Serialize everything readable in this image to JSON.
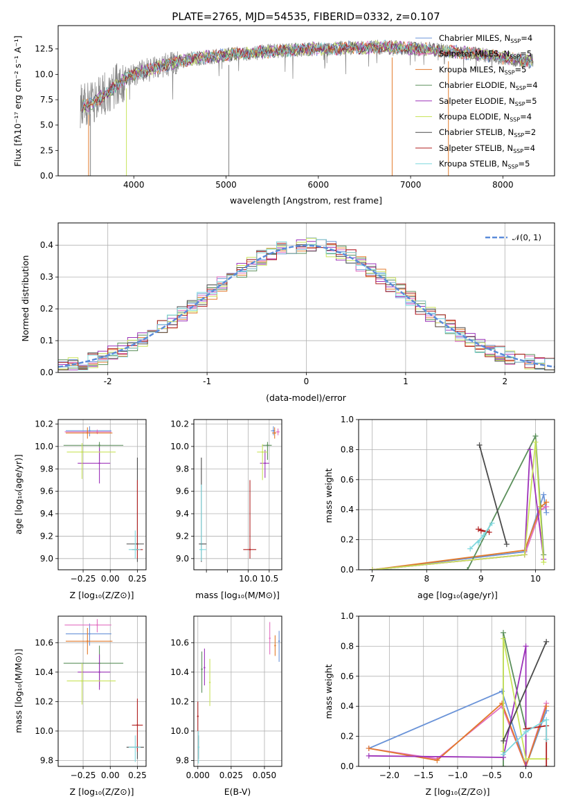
{
  "figure": {
    "title": "PLATE=2765, MJD=54535, FIBERID=0332, z=0.107"
  },
  "models": [
    {
      "name": "Chabrier MILES",
      "nssp": "4",
      "color": "#6a93d8"
    },
    {
      "name": "Salpeter MILES",
      "nssp": "5",
      "color": "#e26fc0"
    },
    {
      "name": "Kroupa MILES",
      "nssp": "5",
      "color": "#e27a2b"
    },
    {
      "name": "Chabrier ELODIE",
      "nssp": "4",
      "color": "#5a8f5a"
    },
    {
      "name": "Salpeter ELODIE",
      "nssp": "5",
      "color": "#9b30b8"
    },
    {
      "name": "Kroupa ELODIE",
      "nssp": "4",
      "color": "#c8e35a"
    },
    {
      "name": "Chabrier STELIB",
      "nssp": "2",
      "color": "#4a4a4a"
    },
    {
      "name": "Salpeter STELIB",
      "nssp": "4",
      "color": "#b01f1f"
    },
    {
      "name": "Kroupa STELIB",
      "nssp": "5",
      "color": "#7fd8de"
    }
  ],
  "chart_data": [
    {
      "id": "spectrum",
      "type": "line",
      "title": "PLATE=2765, MJD=54535, FIBERID=0332, z=0.107",
      "xlabel": "wavelength [Angstrom, rest frame]",
      "ylabel": "Flux [fλ10⁻¹⁷ erg cm⁻² s⁻¹ A⁻¹]",
      "xlim": [
        3180,
        8560
      ],
      "ylim": [
        0,
        14.8
      ],
      "xticks": [
        4000,
        5000,
        6000,
        7000,
        8000
      ],
      "yticks": [
        0.0,
        2.5,
        5.0,
        7.5,
        10.0,
        12.5
      ],
      "legend": "upper right",
      "data_color": "#808080",
      "data_envelope": {
        "x": [
          3450,
          3550,
          3650,
          3750,
          3850,
          3950,
          4100,
          4300,
          4500,
          4700,
          4900,
          5100,
          5300,
          5500,
          5700,
          5900,
          6100,
          6300,
          6500,
          6700,
          6900,
          7100,
          7300,
          7500,
          7700,
          7900,
          8100,
          8300
        ],
        "y": [
          6.9,
          7.1,
          7.8,
          8.4,
          9.2,
          9.8,
          10.3,
          10.8,
          11.3,
          11.6,
          11.8,
          12.0,
          12.1,
          12.3,
          12.4,
          12.5,
          12.5,
          12.6,
          12.6,
          12.7,
          12.6,
          12.5,
          12.4,
          12.2,
          12.0,
          11.8,
          11.5,
          11.3
        ]
      },
      "drops": [
        3510,
        3530,
        3920,
        5030,
        6800,
        7410
      ]
    },
    {
      "id": "residuals",
      "type": "bar",
      "xlabel": "(data-model)/error",
      "ylabel": "Normed distribution",
      "xlim": [
        -2.5,
        2.5
      ],
      "ylim": [
        0,
        0.47
      ],
      "xticks": [
        -2,
        -1,
        0,
        1,
        2
      ],
      "yticks": [
        0.0,
        0.1,
        0.2,
        0.3,
        0.4
      ],
      "reference": {
        "name": "𝒩(0, 1)",
        "mu": 0,
        "sigma": 1,
        "color": "#5b8bd9"
      },
      "bin_width": 0.1,
      "legend": "upper right"
    },
    {
      "id": "age-vs-Z",
      "type": "scatter",
      "xlabel": "Z [log₁₀(Z/Z⊙)]",
      "ylabel": "age  [log₁₀(age/yr)]",
      "xlim": [
        -0.48,
        0.33
      ],
      "ylim": [
        8.9,
        10.24
      ],
      "xticks": [
        -0.25,
        0.0,
        0.25
      ],
      "xtick_labels": [
        "−0.25",
        "0.00",
        "0.25"
      ],
      "yticks": [
        9.0,
        9.2,
        9.4,
        9.6,
        9.8,
        10.0,
        10.2
      ],
      "points": [
        {
          "model": 0,
          "x": -0.19,
          "xerr": [
            0.22,
            0.2
          ],
          "y": 10.14,
          "yerr": [
            0.05,
            0.04
          ]
        },
        {
          "model": 1,
          "x": -0.12,
          "xerr": [
            0.3,
            0.13
          ],
          "y": 10.13,
          "yerr": [
            0.02,
            0.02
          ]
        },
        {
          "model": 2,
          "x": -0.21,
          "xerr": [
            0.2,
            0.23
          ],
          "y": 10.12,
          "yerr": [
            0.05,
            0.05
          ]
        },
        {
          "model": 3,
          "x": -0.1,
          "xerr": [
            0.33,
            0.22
          ],
          "y": 10.01,
          "yerr": [
            0.14,
            0.03
          ]
        },
        {
          "model": 4,
          "x": -0.1,
          "xerr": [
            0.2,
            0.1
          ],
          "y": 9.85,
          "yerr": [
            0.18,
            0.14
          ]
        },
        {
          "model": 5,
          "x": -0.26,
          "xerr": [
            0.14,
            0.31
          ],
          "y": 9.95,
          "yerr": [
            0.24,
            0.08
          ]
        },
        {
          "model": 6,
          "x": 0.25,
          "xerr": [
            0.1,
            0.06
          ],
          "y": 9.13,
          "yerr": [
            0.16,
            0.77
          ]
        },
        {
          "model": 7,
          "x": 0.25,
          "xerr": [
            0.05,
            0.05
          ],
          "y": 9.08,
          "yerr": [
            0.08,
            0.62
          ]
        },
        {
          "model": 8,
          "x": 0.23,
          "xerr": [
            0.06,
            0.05
          ],
          "y": 9.08,
          "yerr": [
            0.08,
            0.17
          ]
        }
      ]
    },
    {
      "id": "age-vs-mass",
      "type": "scatter",
      "xlabel": "mass [log₁₀(M/M⊙)]",
      "xlim": [
        8.7,
        10.8
      ],
      "ylim": [
        8.9,
        10.24
      ],
      "xticks": [
        9.0,
        9.5,
        10.0,
        10.5
      ],
      "xtick_labels": [
        "",
        "",
        "10.0",
        "10.5"
      ],
      "yticks": [
        9.0,
        9.2,
        9.4,
        9.6,
        9.8,
        10.0,
        10.2
      ],
      "points": [
        {
          "model": 0,
          "x": 10.6,
          "xerr": [
            0.06,
            0.04
          ],
          "y": 10.14,
          "yerr": [
            0.04,
            0.04
          ]
        },
        {
          "model": 1,
          "x": 10.71,
          "xerr": [
            0.05,
            0.04
          ],
          "y": 10.13,
          "yerr": [
            0.03,
            0.03
          ]
        },
        {
          "model": 2,
          "x": 10.63,
          "xerr": [
            0.06,
            0.04
          ],
          "y": 10.12,
          "yerr": [
            0.05,
            0.05
          ]
        },
        {
          "model": 3,
          "x": 10.46,
          "xerr": [
            0.13,
            0.1
          ],
          "y": 10.01,
          "yerr": [
            0.13,
            0.03
          ]
        },
        {
          "model": 4,
          "x": 10.4,
          "xerr": [
            0.12,
            0.1
          ],
          "y": 9.85,
          "yerr": [
            0.13,
            0.12
          ]
        },
        {
          "model": 5,
          "x": 10.34,
          "xerr": [
            0.13,
            0.12
          ],
          "y": 9.95,
          "yerr": [
            0.25,
            0.07
          ]
        },
        {
          "model": 6,
          "x": 8.88,
          "xerr": [
            0.06,
            0.12
          ],
          "y": 9.13,
          "yerr": [
            0.16,
            0.77
          ]
        },
        {
          "model": 7,
          "x": 10.04,
          "xerr": [
            0.16,
            0.15
          ],
          "y": 9.08,
          "yerr": [
            0.08,
            0.62
          ]
        },
        {
          "model": 8,
          "x": 8.88,
          "xerr": [
            0.05,
            0.12
          ],
          "y": 9.08,
          "yerr": [
            0.1,
            0.58
          ]
        }
      ]
    },
    {
      "id": "weight-vs-age",
      "type": "line",
      "xlabel": "age  [log₁₀(age/yr)]",
      "ylabel": "mass weight",
      "xlim": [
        6.75,
        10.35
      ],
      "ylim": [
        0,
        1.0
      ],
      "xticks": [
        7,
        8,
        9,
        10
      ],
      "yticks": [
        0.0,
        0.2,
        0.4,
        0.6,
        0.8,
        1.0
      ],
      "series": [
        {
          "model": 0,
          "x": [
            7.0,
            9.8,
            10.15,
            10.2
          ],
          "y": [
            0.0,
            0.12,
            0.5,
            0.38
          ]
        },
        {
          "model": 1,
          "x": [
            7.0,
            9.8,
            10.1,
            10.2
          ],
          "y": [
            0.0,
            0.1,
            0.4,
            0.42
          ]
        },
        {
          "model": 2,
          "x": [
            7.0,
            9.8,
            10.1,
            10.2
          ],
          "y": [
            0.0,
            0.13,
            0.42,
            0.45
          ]
        },
        {
          "model": 3,
          "x": [
            7.0,
            8.75,
            10.0,
            10.15
          ],
          "y": [
            0.0,
            0.0,
            0.89,
            0.1
          ]
        },
        {
          "model": 4,
          "x": [
            7.0,
            9.8,
            9.9,
            10.15
          ],
          "y": [
            0.0,
            0.1,
            0.8,
            0.07
          ]
        },
        {
          "model": 5,
          "x": [
            7.0,
            9.8,
            10.0,
            10.15
          ],
          "y": [
            0.0,
            0.1,
            0.85,
            0.05
          ]
        },
        {
          "model": 6,
          "x": [
            8.97,
            9.47
          ],
          "y": [
            0.83,
            0.17
          ]
        },
        {
          "model": 7,
          "x": [
            8.95,
            9.15,
            9.0
          ],
          "y": [
            0.27,
            0.25,
            0.26
          ]
        },
        {
          "model": 8,
          "x": [
            8.8,
            9.05,
            9.2,
            8.95
          ],
          "y": [
            0.14,
            0.23,
            0.31,
            0.18
          ]
        }
      ]
    },
    {
      "id": "mass-vs-Z",
      "type": "scatter",
      "xlabel": "Z [log₁₀(Z/Z⊙)]",
      "ylabel": "mass [log₁₀(M/M⊙)]",
      "xlim": [
        -0.48,
        0.33
      ],
      "ylim": [
        9.76,
        10.78
      ],
      "xticks": [
        -0.25,
        0.0,
        0.25
      ],
      "xtick_labels": [
        "−0.25",
        "0.00",
        "0.25"
      ],
      "yticks": [
        9.8,
        10.0,
        10.2,
        10.4,
        10.6
      ],
      "points": [
        {
          "model": 0,
          "x": -0.19,
          "xerr": [
            0.22,
            0.2
          ],
          "y": 10.66,
          "yerr": [
            0.08,
            0.07
          ]
        },
        {
          "model": 1,
          "x": -0.12,
          "xerr": [
            0.3,
            0.13
          ],
          "y": 10.72,
          "yerr": [
            0.05,
            0.04
          ]
        },
        {
          "model": 2,
          "x": -0.21,
          "xerr": [
            0.2,
            0.23
          ],
          "y": 10.61,
          "yerr": [
            0.09,
            0.09
          ]
        },
        {
          "model": 3,
          "x": -0.1,
          "xerr": [
            0.33,
            0.22
          ],
          "y": 10.46,
          "yerr": [
            0.16,
            0.12
          ]
        },
        {
          "model": 4,
          "x": -0.1,
          "xerr": [
            0.2,
            0.1
          ],
          "y": 10.4,
          "yerr": [
            0.12,
            0.12
          ]
        },
        {
          "model": 5,
          "x": -0.26,
          "xerr": [
            0.14,
            0.31
          ],
          "y": 10.34,
          "yerr": [
            0.16,
            0.12
          ]
        },
        {
          "model": 6,
          "x": 0.25,
          "xerr": [
            0.1,
            0.06
          ],
          "y": 9.89,
          "yerr": [
            0.08,
            0.08
          ]
        },
        {
          "model": 7,
          "x": 0.25,
          "xerr": [
            0.05,
            0.05
          ],
          "y": 10.04,
          "yerr": [
            0.18,
            0.18
          ]
        },
        {
          "model": 8,
          "x": 0.23,
          "xerr": [
            0.06,
            0.05
          ],
          "y": 9.89,
          "yerr": [
            0.1,
            0.08
          ]
        }
      ]
    },
    {
      "id": "mass-vs-ebv",
      "type": "scatter",
      "xlabel": "E(B-V)",
      "xlim": [
        -0.003,
        0.063
      ],
      "ylim": [
        9.76,
        10.78
      ],
      "xticks": [
        0.0,
        0.025,
        0.05
      ],
      "xtick_labels": [
        "0.000",
        "0.025",
        "0.050"
      ],
      "yticks": [
        9.8,
        10.0,
        10.2,
        10.4,
        10.6
      ],
      "points": [
        {
          "model": 0,
          "x": 0.061,
          "y": 10.61,
          "yerr": [
            0.14,
            0.07
          ]
        },
        {
          "model": 1,
          "x": 0.054,
          "y": 10.63,
          "yerr": [
            0.11,
            0.11
          ]
        },
        {
          "model": 2,
          "x": 0.058,
          "y": 10.58,
          "yerr": [
            0.07,
            0.07
          ]
        },
        {
          "model": 3,
          "x": 0.003,
          "y": 10.42,
          "yerr": [
            0.16,
            0.12
          ]
        },
        {
          "model": 4,
          "x": 0.005,
          "y": 10.43,
          "yerr": [
            0.12,
            0.13
          ]
        },
        {
          "model": 5,
          "x": 0.009,
          "y": 10.33,
          "yerr": [
            0.16,
            0.16
          ]
        },
        {
          "model": 6,
          "x": 0.0005,
          "y": 9.89,
          "yerr": [
            0.08,
            0.08
          ]
        },
        {
          "model": 7,
          "x": 0.0,
          "y": 10.1,
          "yerr": [
            0.1,
            0.1
          ]
        },
        {
          "model": 8,
          "x": 0.0005,
          "y": 9.89,
          "yerr": [
            0.11,
            0.11
          ]
        }
      ]
    },
    {
      "id": "weight-vs-Z",
      "type": "line",
      "xlabel": "Z [log₁₀(Z/Z⊙)]",
      "ylabel": "mass weight",
      "xlim": [
        -2.45,
        0.42
      ],
      "ylim": [
        0,
        1.0
      ],
      "xticks": [
        -2.0,
        -1.5,
        -1.0,
        -0.5,
        0.0
      ],
      "xtick_labels": [
        "−2.0",
        "−1.5",
        "−1.0",
        "−0.5",
        "0.0"
      ],
      "yticks": [
        0.0,
        0.2,
        0.4,
        0.6,
        0.8,
        1.0
      ],
      "series": [
        {
          "model": 0,
          "x": [
            -2.3,
            -0.35,
            0.0,
            0.3
          ],
          "y": [
            0.12,
            0.5,
            0.0,
            0.37
          ]
        },
        {
          "model": 1,
          "x": [
            -2.3,
            -1.3,
            -0.35,
            0.0,
            0.3
          ],
          "y": [
            0.12,
            0.05,
            0.4,
            0.0,
            0.42
          ]
        },
        {
          "model": 2,
          "x": [
            -2.3,
            -1.3,
            -0.35,
            0.0,
            0.3
          ],
          "y": [
            0.12,
            0.04,
            0.42,
            0.0,
            0.4
          ]
        },
        {
          "model": 3,
          "x": [
            -0.33,
            -0.33,
            0.0
          ],
          "y": [
            0.0,
            0.89,
            0.25
          ]
        },
        {
          "model": 4,
          "x": [
            -2.3,
            -0.33,
            0.0,
            0.0
          ],
          "y": [
            0.07,
            0.06,
            0.8,
            0.0
          ]
        },
        {
          "model": 5,
          "x": [
            -0.33,
            -0.33,
            0.0,
            0.3
          ],
          "y": [
            0.1,
            0.85,
            0.05,
            0.05
          ]
        },
        {
          "model": 6,
          "x": [
            -0.33,
            0.3
          ],
          "y": [
            0.17,
            0.83
          ]
        },
        {
          "model": 7,
          "x": [
            0.0,
            0.3,
            0.3
          ],
          "y": [
            0.25,
            0.27,
            0.0
          ]
        },
        {
          "model": 8,
          "x": [
            -0.33,
            0.0,
            0.3,
            0.3
          ],
          "y": [
            0.08,
            0.23,
            0.31,
            0.18
          ]
        }
      ]
    }
  ]
}
